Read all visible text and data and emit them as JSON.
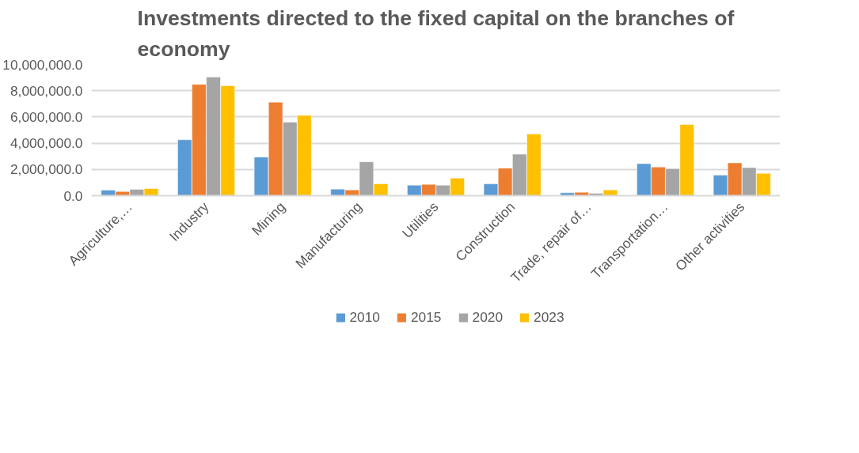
{
  "chart_data": {
    "type": "bar",
    "title": "Investments directed to the fixed capital on the branches of economy",
    "categories": [
      "Agriculture,…",
      "Industry",
      "Mining",
      "Manufacturing",
      "Utilities",
      "Construction",
      "Trade, repair of…",
      "Transportation…",
      "Other activities"
    ],
    "series": [
      {
        "name": "2010",
        "color": "#5b9bd5",
        "values": [
          420000,
          4260000,
          2940000,
          500000,
          800000,
          900000,
          220000,
          2440000,
          1560000
        ]
      },
      {
        "name": "2015",
        "color": "#ed7d31",
        "values": [
          320000,
          8480000,
          7120000,
          440000,
          860000,
          2100000,
          260000,
          2180000,
          2500000
        ]
      },
      {
        "name": "2020",
        "color": "#a5a5a5",
        "values": [
          480000,
          9040000,
          5600000,
          2580000,
          800000,
          3160000,
          180000,
          2060000,
          2140000
        ]
      },
      {
        "name": "2023",
        "color": "#ffc000",
        "values": [
          540000,
          8380000,
          6120000,
          900000,
          1340000,
          4700000,
          440000,
          5420000,
          1700000
        ]
      }
    ],
    "ylim": [
      0,
      10000000
    ],
    "yticks": [
      {
        "value": 0,
        "label": "0.0"
      },
      {
        "value": 2000000,
        "label": "2,000,000.0"
      },
      {
        "value": 4000000,
        "label": "4,000,000.0"
      },
      {
        "value": 6000000,
        "label": "6,000,000.0"
      },
      {
        "value": 8000000,
        "label": "8,000,000.0"
      },
      {
        "value": 10000000,
        "label": "10,000,000.0"
      }
    ],
    "grid": "y",
    "legend": "bottom"
  }
}
